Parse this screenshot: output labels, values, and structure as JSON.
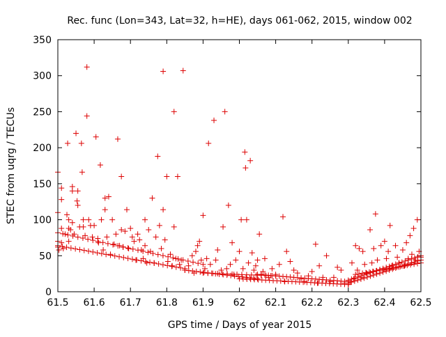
{
  "chart_data": {
    "type": "scatter",
    "title": "Rec. func (Lon=343, Lat=32, h=HE), days 061-062, 2015, window 002",
    "xlabel": "GPS time / Days of year 2015",
    "ylabel": "STEC from uqrg / TECUs",
    "xlim": [
      61.5,
      62.5
    ],
    "ylim": [
      0,
      350
    ],
    "grid": false,
    "x_ticks": [
      61.5,
      61.6,
      61.7,
      61.8,
      61.9,
      62.0,
      62.1,
      62.2,
      62.3,
      62.4,
      62.5
    ],
    "x_tick_labels": [
      "61.5",
      "61.6",
      "61.7",
      "61.8",
      "61.9",
      "62",
      "62.1",
      "62.2",
      "62.3",
      "62.4",
      "62.5"
    ],
    "y_ticks": [
      0,
      50,
      100,
      150,
      200,
      250,
      300,
      350
    ],
    "y_tick_labels": [
      "0",
      "50",
      "100",
      "150",
      "200",
      "250",
      "300",
      "350"
    ],
    "marker": "+",
    "color": "#dd0000",
    "series": [
      {
        "name": "STEC",
        "points": [
          [
            61.5,
            166
          ],
          [
            61.5,
            110
          ],
          [
            61.5,
            70
          ],
          [
            61.5,
            62
          ],
          [
            61.503,
            58
          ],
          [
            61.51,
            144
          ],
          [
            61.51,
            128
          ],
          [
            61.51,
            88
          ],
          [
            61.51,
            68
          ],
          [
            61.515,
            60
          ],
          [
            61.52,
            80
          ],
          [
            61.525,
            107
          ],
          [
            61.527,
            206
          ],
          [
            61.53,
            100
          ],
          [
            61.53,
            88
          ],
          [
            61.53,
            70
          ],
          [
            61.535,
            86
          ],
          [
            61.54,
            146
          ],
          [
            61.54,
            140
          ],
          [
            61.54,
            96
          ],
          [
            61.545,
            80
          ],
          [
            61.55,
            220
          ],
          [
            61.553,
            126
          ],
          [
            61.555,
            120
          ],
          [
            61.555,
            140
          ],
          [
            61.56,
            90
          ],
          [
            61.565,
            206
          ],
          [
            61.567,
            166
          ],
          [
            61.57,
            100
          ],
          [
            61.57,
            90
          ],
          [
            61.575,
            78
          ],
          [
            61.58,
            312
          ],
          [
            61.58,
            244
          ],
          [
            61.585,
            100
          ],
          [
            61.59,
            92
          ],
          [
            61.595,
            76
          ],
          [
            61.6,
            92
          ],
          [
            61.605,
            215
          ],
          [
            61.61,
            74
          ],
          [
            61.612,
            68
          ],
          [
            61.617,
            176
          ],
          [
            61.62,
            100
          ],
          [
            61.625,
            58
          ],
          [
            61.63,
            130
          ],
          [
            61.63,
            114
          ],
          [
            61.635,
            76
          ],
          [
            61.64,
            132
          ],
          [
            61.645,
            52
          ],
          [
            61.65,
            100
          ],
          [
            61.655,
            66
          ],
          [
            61.66,
            80
          ],
          [
            61.665,
            212
          ],
          [
            61.67,
            64
          ],
          [
            61.675,
            160
          ],
          [
            61.675,
            86
          ],
          [
            61.68,
            62
          ],
          [
            61.685,
            84
          ],
          [
            61.69,
            114
          ],
          [
            61.695,
            60
          ],
          [
            61.7,
            88
          ],
          [
            61.705,
            76
          ],
          [
            61.71,
            70
          ],
          [
            61.715,
            44
          ],
          [
            61.72,
            80
          ],
          [
            61.725,
            72
          ],
          [
            61.73,
            58
          ],
          [
            61.735,
            46
          ],
          [
            61.74,
            100
          ],
          [
            61.74,
            64
          ],
          [
            61.745,
            40
          ],
          [
            61.75,
            86
          ],
          [
            61.755,
            56
          ],
          [
            61.76,
            130
          ],
          [
            61.765,
            40
          ],
          [
            61.77,
            76
          ],
          [
            61.775,
            188
          ],
          [
            61.78,
            92
          ],
          [
            61.785,
            60
          ],
          [
            61.79,
            306
          ],
          [
            61.79,
            114
          ],
          [
            61.795,
            72
          ],
          [
            61.8,
            160
          ],
          [
            61.803,
            42
          ],
          [
            61.81,
            52
          ],
          [
            61.815,
            36
          ],
          [
            61.82,
            250
          ],
          [
            61.82,
            90
          ],
          [
            61.825,
            46
          ],
          [
            61.83,
            160
          ],
          [
            61.835,
            38
          ],
          [
            61.84,
            44
          ],
          [
            61.845,
            307
          ],
          [
            61.85,
            30
          ],
          [
            61.86,
            36
          ],
          [
            61.87,
            50
          ],
          [
            61.875,
            26
          ],
          [
            61.88,
            56
          ],
          [
            61.885,
            64
          ],
          [
            61.89,
            70
          ],
          [
            61.895,
            44
          ],
          [
            61.9,
            106
          ],
          [
            61.905,
            32
          ],
          [
            61.91,
            46
          ],
          [
            61.915,
            206
          ],
          [
            61.92,
            38
          ],
          [
            61.93,
            238
          ],
          [
            61.935,
            44
          ],
          [
            61.94,
            58
          ],
          [
            61.95,
            30
          ],
          [
            61.955,
            90
          ],
          [
            61.96,
            250
          ],
          [
            61.965,
            32
          ],
          [
            61.97,
            120
          ],
          [
            61.975,
            38
          ],
          [
            61.98,
            68
          ],
          [
            61.985,
            24
          ],
          [
            61.99,
            44
          ],
          [
            62.0,
            56
          ],
          [
            62.005,
            100
          ],
          [
            62.01,
            32
          ],
          [
            62.015,
            194
          ],
          [
            62.017,
            172
          ],
          [
            62.02,
            100
          ],
          [
            62.025,
            40
          ],
          [
            62.03,
            182
          ],
          [
            62.035,
            54
          ],
          [
            62.04,
            30
          ],
          [
            62.045,
            36
          ],
          [
            62.05,
            44
          ],
          [
            62.055,
            80
          ],
          [
            62.06,
            24
          ],
          [
            62.065,
            28
          ],
          [
            62.07,
            46
          ],
          [
            62.08,
            20
          ],
          [
            62.09,
            32
          ],
          [
            62.1,
            24
          ],
          [
            62.11,
            38
          ],
          [
            62.12,
            104
          ],
          [
            62.125,
            14
          ],
          [
            62.13,
            56
          ],
          [
            62.14,
            42
          ],
          [
            62.15,
            30
          ],
          [
            62.16,
            26
          ],
          [
            62.17,
            18
          ],
          [
            62.18,
            14
          ],
          [
            62.19,
            22
          ],
          [
            62.2,
            28
          ],
          [
            62.21,
            66
          ],
          [
            62.215,
            12
          ],
          [
            62.22,
            36
          ],
          [
            62.23,
            20
          ],
          [
            62.24,
            50
          ],
          [
            62.25,
            14
          ],
          [
            62.26,
            20
          ],
          [
            62.27,
            34
          ],
          [
            62.28,
            30
          ],
          [
            62.29,
            12
          ],
          [
            62.3,
            10
          ],
          [
            62.305,
            14
          ],
          [
            62.31,
            40
          ],
          [
            62.315,
            18
          ],
          [
            62.32,
            64
          ],
          [
            62.325,
            30
          ],
          [
            62.33,
            60
          ],
          [
            62.335,
            20
          ],
          [
            62.34,
            56
          ],
          [
            62.345,
            38
          ],
          [
            62.35,
            26
          ],
          [
            62.36,
            86
          ],
          [
            62.365,
            40
          ],
          [
            62.37,
            60
          ],
          [
            62.375,
            108
          ],
          [
            62.38,
            44
          ],
          [
            62.39,
            64
          ],
          [
            62.395,
            30
          ],
          [
            62.4,
            70
          ],
          [
            62.405,
            46
          ],
          [
            62.41,
            56
          ],
          [
            62.415,
            92
          ],
          [
            62.42,
            36
          ],
          [
            62.43,
            64
          ],
          [
            62.435,
            48
          ],
          [
            62.44,
            40
          ],
          [
            62.45,
            58
          ],
          [
            62.455,
            36
          ],
          [
            62.46,
            68
          ],
          [
            62.465,
            46
          ],
          [
            62.47,
            78
          ],
          [
            62.475,
            52
          ],
          [
            62.48,
            88
          ],
          [
            62.485,
            44
          ],
          [
            62.49,
            100
          ],
          [
            62.495,
            56
          ],
          [
            62.5,
            48
          ]
        ],
        "bands": [
          {
            "x0": 61.5,
            "x1": 61.85,
            "y0": 64,
            "y1": 32,
            "count": 30
          },
          {
            "x0": 61.5,
            "x1": 61.9,
            "y0": 82,
            "y1": 38,
            "count": 30
          },
          {
            "x0": 61.85,
            "x1": 62.05,
            "y0": 30,
            "y1": 18,
            "count": 20
          },
          {
            "x0": 61.9,
            "x1": 62.1,
            "y0": 26,
            "y1": 22,
            "count": 16
          },
          {
            "x0": 62.0,
            "x1": 62.3,
            "y0": 18,
            "y1": 10,
            "count": 30
          },
          {
            "x0": 62.05,
            "x1": 62.3,
            "y0": 24,
            "y1": 14,
            "count": 26
          },
          {
            "x0": 62.3,
            "x1": 62.5,
            "y0": 12,
            "y1": 44,
            "count": 24
          },
          {
            "x0": 62.3,
            "x1": 62.5,
            "y0": 16,
            "y1": 50,
            "count": 24
          },
          {
            "x0": 62.32,
            "x1": 62.5,
            "y0": 24,
            "y1": 40,
            "count": 20
          }
        ]
      }
    ]
  }
}
